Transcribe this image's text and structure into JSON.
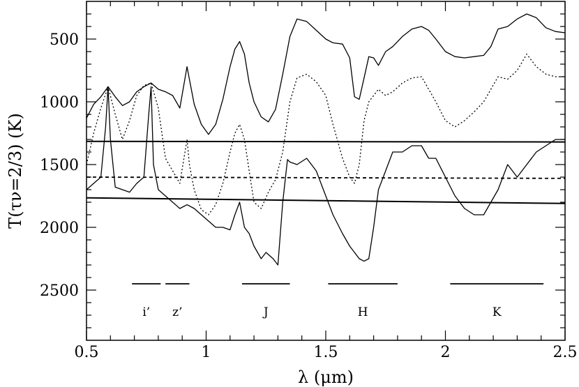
{
  "chart_data": {
    "type": "line",
    "xlabel": "λ (μm)",
    "ylabel": "T(τν=2/3) (K)",
    "xlim": [
      0.5,
      2.5
    ],
    "ylim": [
      2900,
      200
    ],
    "y_inverted": true,
    "grid": false,
    "x_ticks": [
      {
        "value": 0.5,
        "label": "0.5"
      },
      {
        "value": 1.0,
        "label": "1"
      },
      {
        "value": 1.5,
        "label": "1.5"
      },
      {
        "value": 2.0,
        "label": "2"
      },
      {
        "value": 2.5,
        "label": "2.5"
      }
    ],
    "y_ticks": [
      {
        "value": 500,
        "label": "500"
      },
      {
        "value": 1000,
        "label": "1000"
      },
      {
        "value": 1500,
        "label": "1500"
      },
      {
        "value": 2000,
        "label": "2000"
      },
      {
        "value": 2500,
        "label": "2500"
      }
    ],
    "series": [
      {
        "style": "solid",
        "x": [
          0.5,
          0.53,
          0.56,
          0.59,
          0.62,
          0.65,
          0.68,
          0.71,
          0.74,
          0.77,
          0.8,
          0.83,
          0.86,
          0.89,
          0.92,
          0.93,
          0.95,
          0.98,
          1.01,
          1.04,
          1.07,
          1.1,
          1.12,
          1.14,
          1.16,
          1.18,
          1.2,
          1.23,
          1.26,
          1.29,
          1.32,
          1.35,
          1.38,
          1.42,
          1.46,
          1.5,
          1.53,
          1.57,
          1.6,
          1.62,
          1.64,
          1.66,
          1.68,
          1.7,
          1.72,
          1.75,
          1.78,
          1.82,
          1.86,
          1.9,
          1.93,
          1.96,
          2.0,
          2.04,
          2.08,
          2.12,
          2.16,
          2.19,
          2.22,
          2.26,
          2.3,
          2.34,
          2.38,
          2.42,
          2.46,
          2.5
        ],
        "y": [
          1130,
          1020,
          960,
          880,
          960,
          1030,
          1000,
          920,
          880,
          850,
          900,
          920,
          950,
          1050,
          720,
          820,
          1020,
          1180,
          1260,
          1180,
          980,
          720,
          580,
          520,
          620,
          850,
          1000,
          1120,
          1160,
          1060,
          780,
          480,
          340,
          360,
          430,
          500,
          530,
          540,
          650,
          960,
          980,
          810,
          640,
          650,
          710,
          600,
          560,
          480,
          420,
          400,
          430,
          500,
          600,
          640,
          650,
          640,
          630,
          560,
          420,
          400,
          340,
          300,
          330,
          410,
          440,
          450
        ]
      },
      {
        "style": "dotted",
        "x": [
          0.5,
          0.53,
          0.56,
          0.59,
          0.62,
          0.65,
          0.68,
          0.71,
          0.74,
          0.77,
          0.8,
          0.83,
          0.86,
          0.89,
          0.92,
          0.93,
          0.95,
          0.98,
          1.01,
          1.04,
          1.07,
          1.1,
          1.12,
          1.14,
          1.16,
          1.18,
          1.2,
          1.23,
          1.26,
          1.29,
          1.32,
          1.35,
          1.38,
          1.42,
          1.46,
          1.5,
          1.53,
          1.57,
          1.6,
          1.62,
          1.64,
          1.66,
          1.68,
          1.7,
          1.72,
          1.75,
          1.78,
          1.82,
          1.86,
          1.9,
          1.93,
          1.96,
          2.0,
          2.04,
          2.08,
          2.12,
          2.16,
          2.19,
          2.22,
          2.26,
          2.3,
          2.34,
          2.38,
          2.42,
          2.46,
          2.5
        ],
        "y": [
          1500,
          1250,
          1050,
          880,
          1100,
          1300,
          1150,
          950,
          870,
          850,
          1050,
          1450,
          1550,
          1650,
          1300,
          1500,
          1700,
          1860,
          1900,
          1820,
          1650,
          1400,
          1250,
          1180,
          1300,
          1550,
          1800,
          1850,
          1720,
          1620,
          1400,
          1000,
          810,
          780,
          840,
          950,
          1180,
          1450,
          1600,
          1650,
          1500,
          1150,
          1000,
          950,
          900,
          950,
          920,
          850,
          810,
          800,
          900,
          1000,
          1150,
          1200,
          1150,
          1080,
          1000,
          900,
          800,
          820,
          750,
          620,
          720,
          780,
          800,
          800
        ]
      },
      {
        "style": "solid",
        "x": [
          0.5,
          0.53,
          0.56,
          0.58,
          0.59,
          0.6,
          0.62,
          0.65,
          0.68,
          0.71,
          0.74,
          0.76,
          0.77,
          0.78,
          0.8,
          0.83,
          0.86,
          0.89,
          0.92,
          0.95,
          0.98,
          1.01,
          1.04,
          1.07,
          1.1,
          1.12,
          1.14,
          1.16,
          1.18,
          1.2,
          1.23,
          1.25,
          1.28,
          1.3,
          1.32,
          1.34,
          1.35,
          1.38,
          1.42,
          1.46,
          1.5,
          1.53,
          1.57,
          1.6,
          1.62,
          1.64,
          1.66,
          1.68,
          1.7,
          1.72,
          1.75,
          1.78,
          1.82,
          1.86,
          1.9,
          1.93,
          1.96,
          2.0,
          2.04,
          2.08,
          2.12,
          2.16,
          2.19,
          2.22,
          2.26,
          2.3,
          2.34,
          2.38,
          2.42,
          2.46,
          2.5
        ],
        "y": [
          1700,
          1650,
          1600,
          1200,
          880,
          1300,
          1680,
          1700,
          1720,
          1650,
          1600,
          1100,
          880,
          1500,
          1700,
          1750,
          1800,
          1850,
          1820,
          1850,
          1900,
          1950,
          2000,
          2000,
          2020,
          1900,
          1800,
          2000,
          2050,
          2150,
          2250,
          2200,
          2250,
          2300,
          1800,
          1460,
          1480,
          1500,
          1450,
          1550,
          1750,
          1900,
          2050,
          2150,
          2200,
          2250,
          2270,
          2250,
          2000,
          1700,
          1550,
          1400,
          1400,
          1350,
          1350,
          1450,
          1450,
          1600,
          1750,
          1850,
          1900,
          1900,
          1800,
          1700,
          1500,
          1600,
          1500,
          1400,
          1350,
          1300,
          1300
        ]
      },
      {
        "style": "solid",
        "x": [
          0.5,
          2.5
        ],
        "y": [
          1315,
          1320
        ]
      },
      {
        "style": "dashed",
        "x": [
          0.5,
          2.5
        ],
        "y": [
          1600,
          1610
        ]
      },
      {
        "style": "solid",
        "x": [
          0.5,
          2.5
        ],
        "y": [
          1765,
          1810
        ]
      }
    ],
    "bands": [
      {
        "label": "i’",
        "x_start": 0.69,
        "x_end": 0.81,
        "y": 2450
      },
      {
        "label": "z’",
        "x_start": 0.83,
        "x_end": 0.93,
        "y": 2450
      },
      {
        "label": "J",
        "x_start": 1.15,
        "x_end": 1.35,
        "y": 2450
      },
      {
        "label": "H",
        "x_start": 1.51,
        "x_end": 1.8,
        "y": 2450
      },
      {
        "label": "K",
        "x_start": 2.02,
        "x_end": 2.41,
        "y": 2450
      }
    ],
    "colors": {
      "ink": "#000000",
      "background": "#ffffff"
    }
  }
}
